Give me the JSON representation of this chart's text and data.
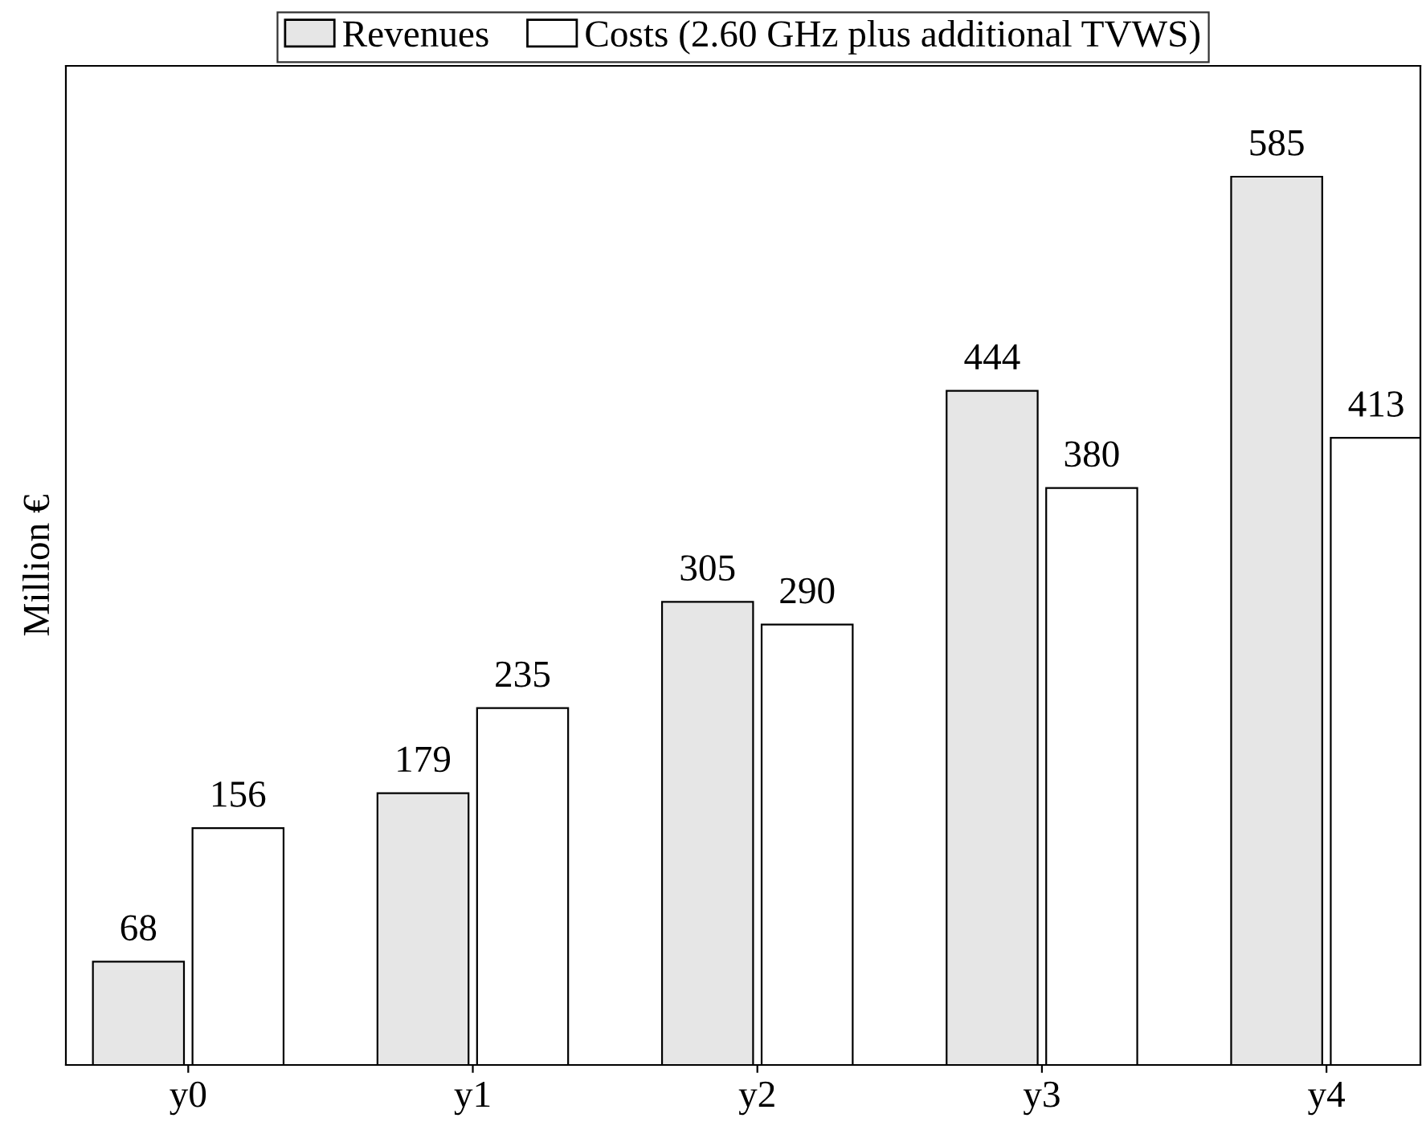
{
  "chart_data": {
    "type": "bar",
    "ylabel": "Million €",
    "categories": [
      "y0",
      "y1",
      "y2",
      "y3",
      "y4"
    ],
    "series": [
      {
        "name": "Revenues",
        "color": "#e6e6e6",
        "values": [
          68,
          179,
          305,
          444,
          585
        ]
      },
      {
        "name": "Costs (2.60 GHz plus additional TVWS)",
        "color": "#ffffff",
        "values": [
          156,
          235,
          290,
          380,
          413
        ]
      }
    ],
    "ylim": [
      0,
      658
    ],
    "data_labels": true,
    "legend": "top",
    "grid": false,
    "tick_labels": "x"
  }
}
